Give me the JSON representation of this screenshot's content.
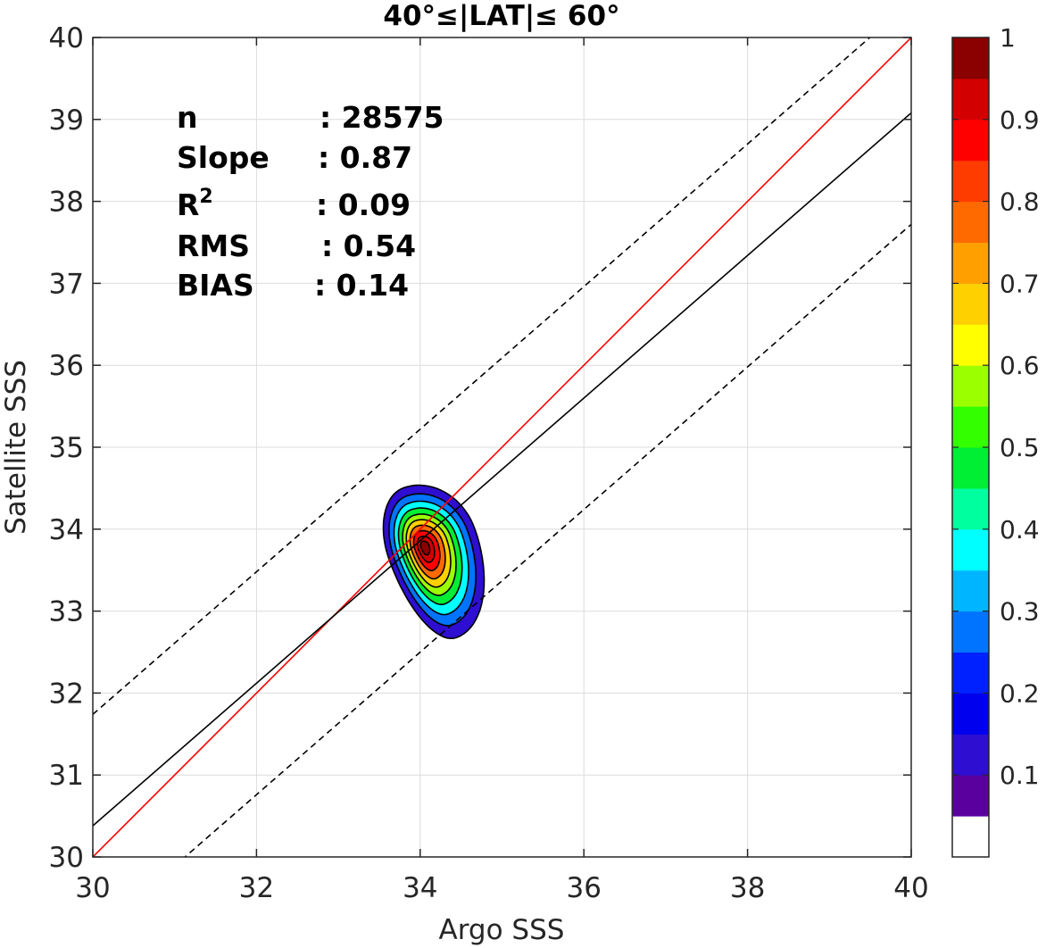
{
  "chart_data": {
    "type": "contour",
    "title": "40°≤|LAT|≤ 60°",
    "xlabel": "Argo SSS",
    "ylabel": "Satellite SSS",
    "xlim": [
      30,
      40
    ],
    "ylim": [
      30,
      40
    ],
    "xticks": [
      "30",
      "32",
      "34",
      "36",
      "38",
      "40"
    ],
    "yticks": [
      "30",
      "31",
      "32",
      "33",
      "34",
      "35",
      "36",
      "37",
      "38",
      "39",
      "40"
    ],
    "grid": true,
    "stats": [
      {
        "label": "n",
        "value": ": 28575"
      },
      {
        "label": "Slope",
        "value": ": 0.87"
      },
      {
        "label": "R",
        "sup": "2",
        "value": ": 0.09"
      },
      {
        "label": "RMS",
        "value": ": 0.54"
      },
      {
        "label": "BIAS",
        "value": ": 0.14"
      }
    ],
    "lines": [
      {
        "kind": "one-to-one",
        "color": "#ff0000",
        "slope": 1,
        "intercept": 0
      },
      {
        "kind": "regression",
        "color": "#000000",
        "slope": 0.87,
        "intercept": 4.28
      },
      {
        "kind": "upper-bound",
        "color": "#000000",
        "dash": true,
        "slope": 0.87,
        "intercept": 5.64
      },
      {
        "kind": "lower-bound",
        "color": "#000000",
        "dash": true,
        "slope": 0.87,
        "intercept": 2.92
      }
    ],
    "density_peak": {
      "x": 33.92,
      "y": 33.84
    },
    "colorbar": {
      "ticks": [
        "0.1",
        "0.2",
        "0.3",
        "0.4",
        "0.5",
        "0.6",
        "0.7",
        "0.8",
        "0.9",
        "1"
      ],
      "colors": [
        "#ffffff",
        "#5a009f",
        "#2e0ed0",
        "#0000ee",
        "#0021ff",
        "#0074ff",
        "#00b5ff",
        "#00ffff",
        "#00ff9e",
        "#00ee33",
        "#33ff00",
        "#9cff00",
        "#ffff00",
        "#ffd000",
        "#ffa000",
        "#ff6a00",
        "#ff3c00",
        "#ff0000",
        "#d20000",
        "#8b0000"
      ]
    }
  }
}
